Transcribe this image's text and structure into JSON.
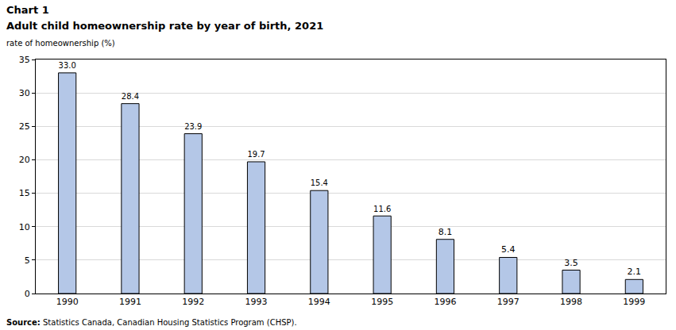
{
  "chart_data": {
    "type": "bar",
    "chart_label": "Chart 1",
    "title": "Adult child homeownership rate by year of birth, 2021",
    "y_label": "rate of homeownership (%)",
    "source_label": "Source:",
    "source": "Statistics Canada, Canadian Housing Statistics Program (CHSP).",
    "categories": [
      "1990",
      "1991",
      "1992",
      "1993",
      "1994",
      "1995",
      "1996",
      "1997",
      "1998",
      "1999"
    ],
    "values": [
      33.0,
      28.4,
      23.9,
      19.7,
      15.4,
      11.6,
      8.1,
      5.4,
      3.5,
      2.1
    ],
    "value_labels": [
      "33.0",
      "28.4",
      "23.9",
      "19.7",
      "15.4",
      "11.6",
      "8.1",
      "5.4",
      "3.5",
      "2.1"
    ],
    "data_labels": true,
    "color": "#b4c7e7",
    "ylim": [
      0,
      35
    ],
    "yticks": [
      0,
      5,
      10,
      15,
      20,
      25,
      30,
      35
    ],
    "grid": true
  }
}
